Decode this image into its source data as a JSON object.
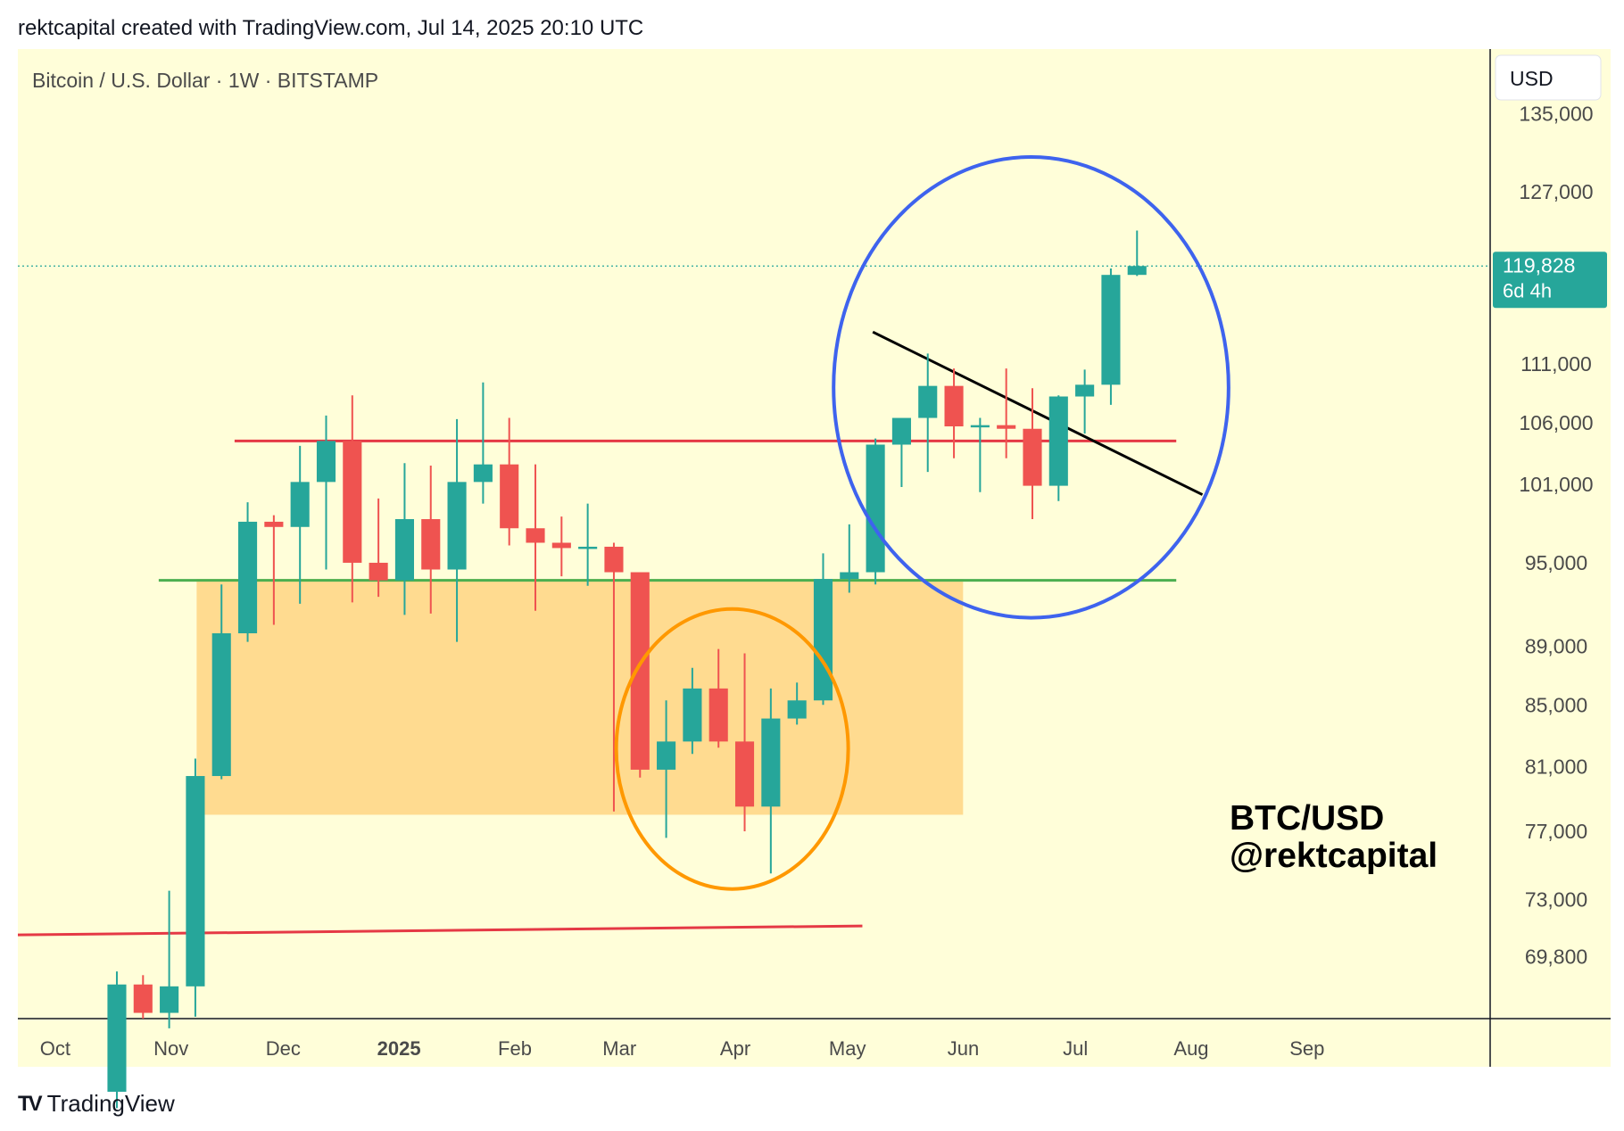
{
  "header": {
    "text": "rektcapital created with TradingView.com, Jul 14, 2025 20:10 UTC"
  },
  "footer": {
    "brand": "TradingView"
  },
  "chart_data": {
    "type": "candlestick",
    "title": "Bitcoin / U.S. Dollar · 1W · BITSTAMP",
    "currency": "USD",
    "y_scale": "log",
    "ylim": [
      66500,
      142000
    ],
    "y_ticks": [
      {
        "value": 135000,
        "label": "135,000"
      },
      {
        "value": 127000,
        "label": "127,000"
      },
      {
        "value": 111000,
        "label": "111,000"
      },
      {
        "value": 106000,
        "label": "106,000"
      },
      {
        "value": 101000,
        "label": "101,000"
      },
      {
        "value": 95000,
        "label": "95,000"
      },
      {
        "value": 89000,
        "label": "89,000"
      },
      {
        "value": 85000,
        "label": "85,000"
      },
      {
        "value": 81000,
        "label": "81,000"
      },
      {
        "value": 77000,
        "label": "77,000"
      },
      {
        "value": 73000,
        "label": "73,000"
      },
      {
        "value": 69800,
        "label": "69,800"
      }
    ],
    "x_ticks": [
      {
        "label": "Oct",
        "date": "2024-10-01",
        "bold": false
      },
      {
        "label": "Nov",
        "date": "2024-11-01",
        "bold": false
      },
      {
        "label": "Dec",
        "date": "2024-12-01",
        "bold": false
      },
      {
        "label": "2025",
        "date": "2025-01-01",
        "bold": true
      },
      {
        "label": "Feb",
        "date": "2025-02-01",
        "bold": false
      },
      {
        "label": "Mar",
        "date": "2025-03-01",
        "bold": false
      },
      {
        "label": "Apr",
        "date": "2025-04-01",
        "bold": false
      },
      {
        "label": "May",
        "date": "2025-05-01",
        "bold": false
      },
      {
        "label": "Jun",
        "date": "2025-06-01",
        "bold": false
      },
      {
        "label": "Jul",
        "date": "2025-07-01",
        "bold": false
      },
      {
        "label": "Aug",
        "date": "2025-08-01",
        "bold": false
      },
      {
        "label": "Sep",
        "date": "2025-09-01",
        "bold": false
      }
    ],
    "x_range": [
      "2024-09-21",
      "2025-10-20"
    ],
    "price_label": {
      "value": "119,828",
      "countdown": "6d 4h",
      "price": 119828
    },
    "candles": [
      {
        "date": "2024-10-14",
        "o": 62800,
        "h": 69000,
        "l": 62000,
        "c": 68300
      },
      {
        "date": "2024-10-21",
        "o": 68300,
        "h": 68800,
        "l": 66500,
        "c": 66800
      },
      {
        "date": "2024-10-28",
        "o": 66800,
        "h": 73500,
        "l": 66000,
        "c": 68200
      },
      {
        "date": "2024-11-04",
        "o": 68200,
        "h": 81500,
        "l": 66600,
        "c": 80400
      },
      {
        "date": "2024-11-11",
        "o": 80400,
        "h": 93400,
        "l": 80200,
        "c": 89900
      },
      {
        "date": "2024-11-18",
        "o": 89900,
        "h": 99600,
        "l": 89300,
        "c": 98100
      },
      {
        "date": "2024-11-25",
        "o": 98100,
        "h": 98600,
        "l": 90500,
        "c": 97700
      },
      {
        "date": "2024-12-02",
        "o": 97700,
        "h": 104100,
        "l": 92000,
        "c": 101200
      },
      {
        "date": "2024-12-09",
        "o": 101200,
        "h": 106600,
        "l": 94500,
        "c": 104500
      },
      {
        "date": "2024-12-16",
        "o": 104500,
        "h": 108300,
        "l": 92100,
        "c": 95000
      },
      {
        "date": "2024-12-23",
        "o": 95000,
        "h": 99900,
        "l": 92500,
        "c": 93700
      },
      {
        "date": "2024-12-30",
        "o": 93700,
        "h": 102700,
        "l": 91200,
        "c": 98300
      },
      {
        "date": "2025-01-06",
        "o": 98300,
        "h": 102500,
        "l": 91300,
        "c": 94500
      },
      {
        "date": "2025-01-13",
        "o": 94500,
        "h": 106300,
        "l": 89300,
        "c": 101200
      },
      {
        "date": "2025-01-20",
        "o": 101200,
        "h": 109400,
        "l": 99500,
        "c": 102600
      },
      {
        "date": "2025-01-27",
        "o": 102600,
        "h": 106400,
        "l": 96300,
        "c": 97600
      },
      {
        "date": "2025-02-03",
        "o": 97600,
        "h": 102600,
        "l": 91500,
        "c": 96500
      },
      {
        "date": "2025-02-10",
        "o": 96500,
        "h": 98500,
        "l": 94000,
        "c": 96100
      },
      {
        "date": "2025-02-17",
        "o": 96100,
        "h": 99500,
        "l": 93300,
        "c": 96200
      },
      {
        "date": "2025-02-24",
        "o": 96200,
        "h": 96500,
        "l": 78200,
        "c": 94300
      },
      {
        "date": "2025-03-03",
        "o": 94300,
        "h": 94000,
        "l": 80300,
        "c": 80800
      },
      {
        "date": "2025-03-10",
        "o": 80800,
        "h": 85300,
        "l": 76600,
        "c": 82600
      },
      {
        "date": "2025-03-17",
        "o": 82600,
        "h": 87500,
        "l": 81800,
        "c": 86100
      },
      {
        "date": "2025-03-24",
        "o": 86100,
        "h": 88800,
        "l": 82200,
        "c": 82600
      },
      {
        "date": "2025-03-31",
        "o": 82600,
        "h": 88500,
        "l": 77000,
        "c": 78500
      },
      {
        "date": "2025-04-07",
        "o": 78500,
        "h": 86100,
        "l": 74500,
        "c": 84100
      },
      {
        "date": "2025-04-14",
        "o": 84100,
        "h": 86500,
        "l": 83700,
        "c": 85300
      },
      {
        "date": "2025-04-21",
        "o": 85300,
        "h": 95700,
        "l": 85000,
        "c": 93800
      },
      {
        "date": "2025-04-28",
        "o": 93800,
        "h": 97900,
        "l": 92800,
        "c": 94300
      },
      {
        "date": "2025-05-05",
        "o": 94300,
        "h": 104700,
        "l": 93400,
        "c": 104200
      },
      {
        "date": "2025-05-12",
        "o": 104200,
        "h": 106300,
        "l": 100800,
        "c": 106400
      },
      {
        "date": "2025-05-19",
        "o": 106400,
        "h": 111900,
        "l": 102000,
        "c": 109100
      },
      {
        "date": "2025-05-26",
        "o": 109100,
        "h": 110600,
        "l": 103100,
        "c": 105700
      },
      {
        "date": "2025-06-02",
        "o": 105700,
        "h": 106400,
        "l": 100400,
        "c": 105800
      },
      {
        "date": "2025-06-09",
        "o": 105800,
        "h": 110600,
        "l": 103100,
        "c": 105500
      },
      {
        "date": "2025-06-16",
        "o": 105500,
        "h": 108900,
        "l": 98300,
        "c": 100900
      },
      {
        "date": "2025-06-23",
        "o": 100900,
        "h": 108300,
        "l": 99700,
        "c": 108200
      },
      {
        "date": "2025-06-30",
        "o": 108200,
        "h": 110500,
        "l": 105100,
        "c": 109200
      },
      {
        "date": "2025-07-07",
        "o": 109200,
        "h": 119600,
        "l": 107500,
        "c": 119000
      },
      {
        "date": "2025-07-14",
        "o": 119000,
        "h": 123200,
        "l": 118900,
        "c": 119828
      }
    ],
    "annotations": {
      "watermark": [
        "BTC/USD",
        "@rektcapital"
      ],
      "support_zone": {
        "from": "2024-11-11",
        "to": "2025-05-26",
        "high": 93800,
        "low": 78000,
        "color": "#ffd98c"
      },
      "resistance_line_upper": {
        "price": 104500,
        "from": "2024-11-25",
        "to": "2025-07-28",
        "color": "#e53945"
      },
      "support_line_green": {
        "price": 93700,
        "from": "2024-10-21",
        "to": "2025-07-28",
        "color": "#4caf50"
      },
      "lower_trendline": {
        "start": {
          "date": "2024-09-21",
          "price": 71000
        },
        "end": {
          "date": "2025-05-05",
          "price": 71500
        },
        "color": "#e53945"
      },
      "downtrend_line": {
        "start": {
          "date": "2025-05-05",
          "price": 113800
        },
        "end": {
          "date": "2025-08-04",
          "price": 100200
        },
        "color": "#000000"
      },
      "orange_circle": {
        "color": "#ff9800"
      },
      "blue_circle": {
        "color": "#3e63ee"
      }
    },
    "colors": {
      "up": "#26a69a",
      "down": "#ef5350",
      "background": "#fffed9",
      "price_label": "#26a69a"
    }
  }
}
